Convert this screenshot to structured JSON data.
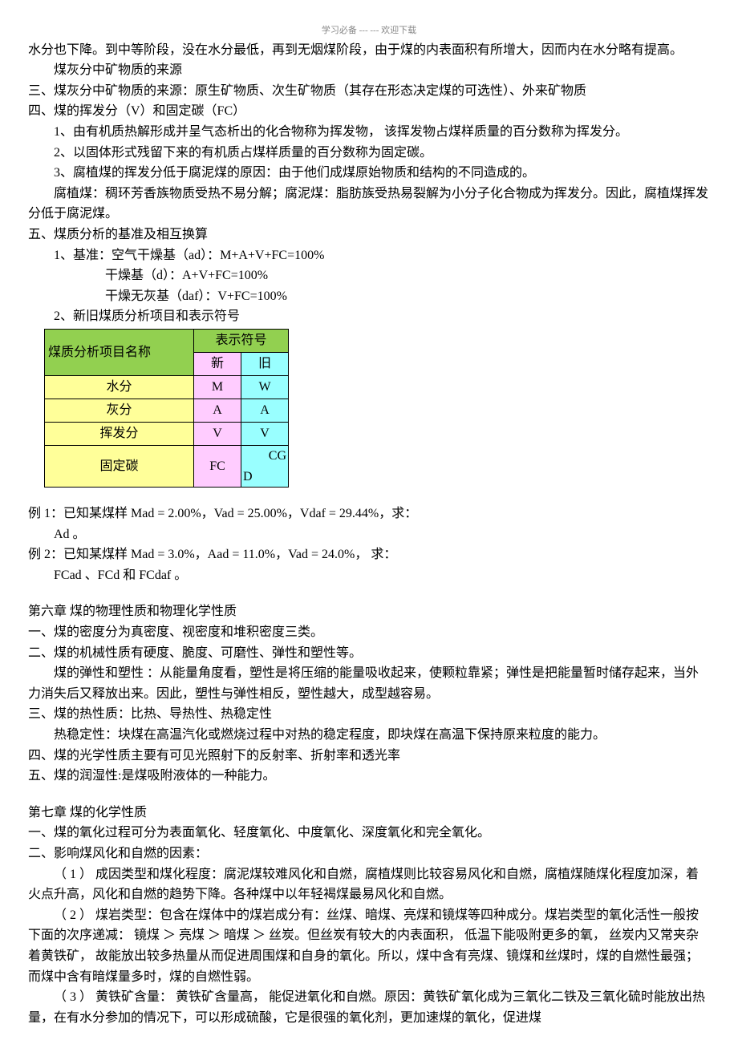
{
  "watermark": "学习必备 --- --- 欢迎下载",
  "intro": {
    "p1": "水分也下降。到中等阶段，没在水分最低，再到无烟煤阶段，由于煤的内表面积有所增大，因而内在水分略有提高。",
    "p2": "煤灰分中矿物质的来源",
    "p3": "三、煤灰分中矿物质的来源：原生矿物质、次生矿物质（其存在形态决定煤的可选性）、外来矿物质",
    "p4": "四、煤的挥发分（V）和固定碳（FC）",
    "p5": "1、由有机质热解形成并呈气态析出的化合物称为挥发物， 该挥发物占煤样质量的百分数称为挥发分。",
    "p6": "2、以固体形式残留下来的有机质占煤样质量的百分数称为固定碳。",
    "p7": "3、腐植煤的挥发分低于腐泥煤的原因：由于他们成煤原始物质和结构的不同造成的。",
    "p8": "腐植煤：稠环芳香族物质受热不易分解；腐泥煤：脂肪族受热易裂解为小分子化合物成为挥发分。因此，腐植煤挥发分低于腐泥煤。",
    "p9": "五、煤质分析的基准及相互换算",
    "p10": "1、基准：空气干燥基（ad）：M+A+V+FC=100%",
    "p11": "干燥基（d）：A+V+FC=100%",
    "p12": "干燥无灰基（daf）：V+FC=100%",
    "p13": "2、新旧煤质分析项目和表示符号"
  },
  "table": {
    "header_name": "煤质分析项目名称",
    "header_sym": "表示符号",
    "sub_new": "新",
    "sub_old": "旧",
    "rows": [
      {
        "name": "水分",
        "new": "M",
        "old": "W"
      },
      {
        "name": "灰分",
        "new": "A",
        "old": "A"
      },
      {
        "name": "挥发分",
        "new": "V",
        "old": "V"
      },
      {
        "name": "固定碳",
        "new": "FC",
        "old": "CGD"
      }
    ]
  },
  "examples": {
    "e1": "例 1：已知某煤样  Mad = 2.00%，Vad = 25.00%，Vdaf = 29.44%，求：",
    "e1b": "Ad 。",
    "e2": "例 2：已知某煤样  Mad = 3.0%，Aad = 11.0%，Vad = 24.0%， 求：",
    "e2b": "FCad 、FCd 和  FCdaf 。"
  },
  "ch6": {
    "title": "第六章 煤的物理性质和物理化学性质",
    "p1": "一、煤的密度分为真密度、视密度和堆积密度三类。",
    "p2": "二、煤的机械性质有硬度、脆度、可磨性、弹性和塑性等。",
    "p3": "煤的弹性和塑性 ：从能量角度看，塑性是将压缩的能量吸收起来，使颗粒靠紧；弹性是把能量暂时储存起来，当外力消失后又释放出来。因此，塑性与弹性相反，塑性越大，成型越容易。",
    "p4": "三、煤的热性质：比热、导热性、热稳定性",
    "p5": "热稳定性：块煤在高温汽化或燃烧过程中对热的稳定程度，即块煤在高温下保持原来粒度的能力。",
    "p6": "四、煤的光学性质主要有可见光照射下的反射率、折射率和透光率",
    "p7": "五、煤的润湿性:是煤吸附液体的一种能力。"
  },
  "ch7": {
    "title": "第七章 煤的化学性质",
    "p1": "一、煤的氧化过程可分为表面氧化、轻度氧化、中度氧化、深度氧化和完全氧化。",
    "p2": "二、影响煤风化和自燃的因素：",
    "p3": "（ 1 ） 成因类型和煤化程度：腐泥煤较难风化和自燃，腐植煤则比较容易风化和自燃，腐植煤随煤化程度加深，着火点升高，风化和自燃的趋势下降。各种煤中以年轻褐煤最易风化和自燃。",
    "p4": "（ 2 ） 煤岩类型：包含在煤体中的煤岩成分有：丝煤、暗煤、亮煤和镜煤等四种成分。煤岩类型的氧化活性一般按下面的次序递减： 镜煤 ＞ 亮煤 ＞ 暗煤 ＞ 丝炭。但丝炭有较大的内表面积， 低温下能吸附更多的氧， 丝炭内又常夹杂着黄铁矿， 故能放出较多热量从而促进周围煤和自身的氧化。所以，煤中含有亮煤、镜煤和丝煤时，煤的自燃性最强；而煤中含有暗煤量多时，煤的自燃性弱。",
    "p5": "（ 3 ） 黄铁矿含量： 黄铁矿含量高， 能促进氧化和自燃。原因：黄铁矿氧化成为三氧化二铁及三氧化硫时能放出热量，在有水分参加的情况下，可以形成硫酸，它是很强的氧化剂，更加速煤的氧化，促进煤"
  }
}
